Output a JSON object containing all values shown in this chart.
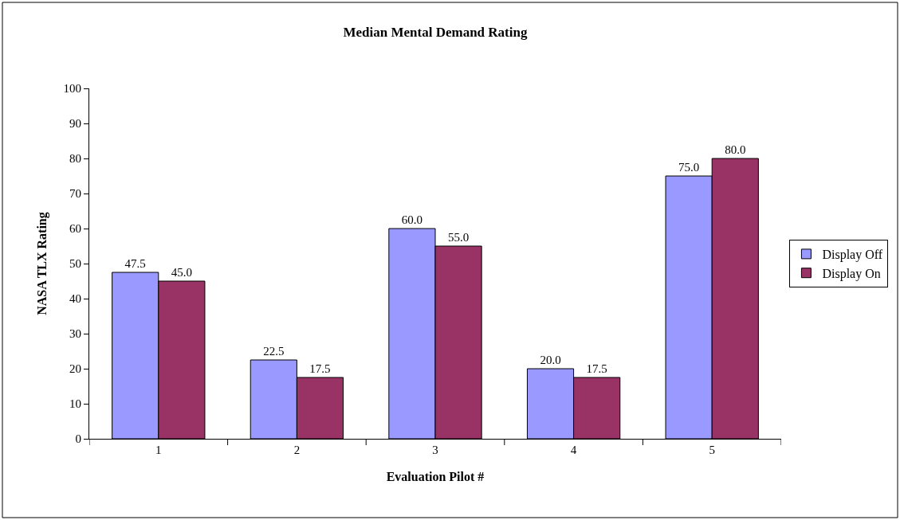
{
  "chart_data": {
    "type": "bar",
    "title": "Median Mental Demand Rating",
    "xlabel": "Evaluation Pilot #",
    "ylabel": "NASA TLX Rating",
    "categories": [
      "1",
      "2",
      "3",
      "4",
      "5"
    ],
    "series": [
      {
        "name": "Display Off",
        "color": "#9999ff",
        "values": [
          47.5,
          22.5,
          60.0,
          20.0,
          75.0
        ],
        "value_labels": [
          "47.5",
          "22.5",
          "60.0",
          "20.0",
          "75.0"
        ]
      },
      {
        "name": "Display On",
        "color": "#993366",
        "values": [
          45.0,
          17.5,
          55.0,
          17.5,
          80.0
        ],
        "value_labels": [
          "45.0",
          "17.5",
          "55.0",
          "17.5",
          "80.0"
        ]
      }
    ],
    "ylim": [
      0,
      100
    ],
    "yticks": [
      0,
      10,
      20,
      30,
      40,
      50,
      60,
      70,
      80,
      90,
      100
    ],
    "grid": false,
    "legend": "right"
  }
}
